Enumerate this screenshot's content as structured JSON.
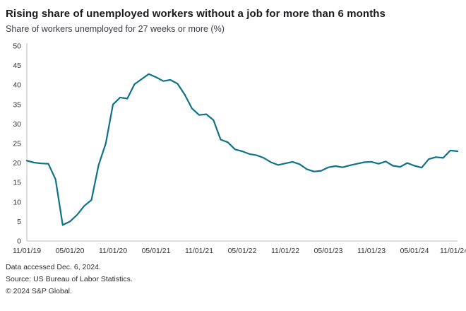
{
  "header": {
    "title": "Rising share of unemployed workers without a job for more than 6 months",
    "subtitle": "Share of workers unemployed for 27 weeks or more (%)"
  },
  "chart_data": {
    "type": "line",
    "title": "Rising share of unemployed workers without a job for more than 6 months",
    "subtitle": "Share of workers unemployed for 27 weeks or more (%)",
    "ylabel": "Share of workers unemployed for 27 weeks or more (%)",
    "xlabel": "",
    "ylim": [
      0,
      50
    ],
    "ytick_step": 5,
    "grid": false,
    "legend": "none",
    "line_color": "#0f7286",
    "axis_color": "#bdbdbd",
    "x_start": "11/01/19",
    "x_frequency": "monthly",
    "x_tick_labels": [
      "11/01/19",
      "05/01/20",
      "11/01/20",
      "05/01/21",
      "11/01/21",
      "05/01/22",
      "11/01/22",
      "05/01/23",
      "11/01/23",
      "05/01/24",
      "11/01/24"
    ],
    "x_tick_indices": [
      0,
      6,
      12,
      18,
      24,
      30,
      36,
      42,
      48,
      54,
      60
    ],
    "values": [
      20.6,
      20.1,
      19.9,
      19.8,
      15.8,
      4.1,
      5.0,
      6.7,
      9.0,
      10.5,
      19.5,
      25.0,
      35.0,
      36.8,
      36.5,
      40.2,
      41.5,
      42.8,
      42.0,
      41.0,
      41.3,
      40.3,
      37.5,
      34.0,
      32.3,
      32.5,
      31.0,
      26.0,
      25.3,
      23.5,
      23.0,
      22.3,
      22.0,
      21.3,
      20.2,
      19.5,
      19.9,
      20.3,
      19.7,
      18.4,
      17.8,
      18.0,
      18.9,
      19.2,
      18.9,
      19.4,
      19.8,
      20.2,
      20.3,
      19.8,
      20.4,
      19.3,
      19.0,
      20.0,
      19.3,
      18.8,
      21.0,
      21.5,
      21.3,
      23.2,
      23.0
    ]
  },
  "footer": {
    "line1": "Data accessed Dec. 6, 2024.",
    "line2": "Source: US Bureau of Labor Statistics.",
    "line3": "© 2024 S&P Global."
  }
}
